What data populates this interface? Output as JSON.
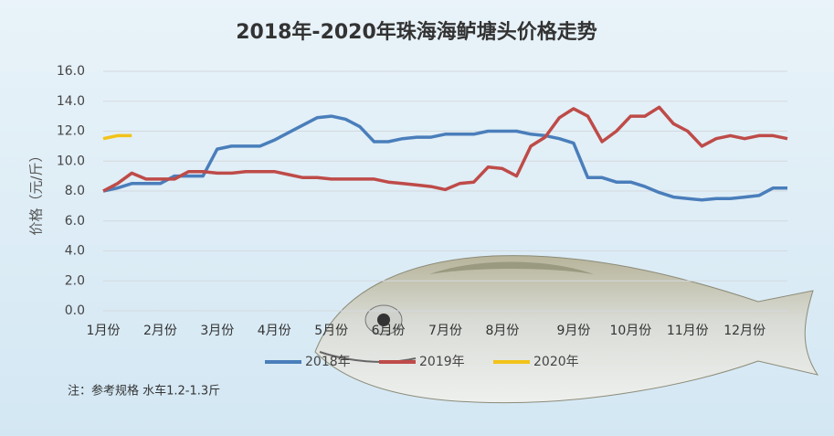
{
  "chart_data": {
    "type": "line",
    "title": "2018年-2020年珠海海鲈塘头价格走势",
    "y_label": "价格（元/斤）",
    "note": "注：参考规格 水车1.2-1.3斤",
    "categories": [
      "1月份",
      null,
      null,
      null,
      "2月份",
      null,
      null,
      null,
      "3月份",
      null,
      null,
      null,
      "4月份",
      null,
      null,
      null,
      "5月份",
      null,
      null,
      null,
      "6月份",
      null,
      null,
      null,
      "7月份",
      null,
      null,
      null,
      "8月份",
      null,
      null,
      null,
      null,
      "9月份",
      null,
      null,
      null,
      "10月份",
      null,
      null,
      null,
      "11月份",
      null,
      null,
      null,
      "12月份",
      null,
      null,
      null
    ],
    "series": [
      {
        "name": "2018年",
        "color": "#4a7ebb",
        "values": [
          8.0,
          8.2,
          8.5,
          8.5,
          8.5,
          9.0,
          9.0,
          9.0,
          10.8,
          11.0,
          11.0,
          11.0,
          11.4,
          11.9,
          12.4,
          12.9,
          13.0,
          12.8,
          12.3,
          11.3,
          11.3,
          11.5,
          11.6,
          11.6,
          11.8,
          11.8,
          11.8,
          12.0,
          12.0,
          12.0,
          11.8,
          11.7,
          11.5,
          11.2,
          8.9,
          8.9,
          8.6,
          8.6,
          8.3,
          7.9,
          7.6,
          7.5,
          7.4,
          7.5,
          7.5,
          7.6,
          7.7,
          8.2,
          8.2
        ]
      },
      {
        "name": "2019年",
        "color": "#be4b48",
        "values": [
          8.0,
          8.5,
          9.2,
          8.8,
          8.8,
          8.8,
          9.3,
          9.3,
          9.2,
          9.2,
          9.3,
          9.3,
          9.3,
          9.1,
          8.9,
          8.9,
          8.8,
          8.8,
          8.8,
          8.8,
          8.6,
          8.5,
          8.4,
          8.3,
          8.1,
          8.5,
          8.6,
          9.6,
          9.5,
          9.0,
          11.0,
          11.6,
          12.9,
          13.5,
          13.0,
          11.3,
          12.0,
          13.0,
          13.0,
          13.6,
          12.5,
          12.0,
          11.0,
          11.5,
          11.7,
          11.5,
          11.7,
          11.7,
          11.5
        ]
      },
      {
        "name": "2020年",
        "color": "#f2c318",
        "values": [
          11.5,
          11.7,
          11.7,
          null,
          null,
          null,
          null,
          null,
          null,
          null,
          null,
          null,
          null,
          null,
          null,
          null,
          null,
          null,
          null,
          null,
          null,
          null,
          null,
          null,
          null,
          null,
          null,
          null,
          null,
          null,
          null,
          null,
          null,
          null,
          null,
          null,
          null,
          null,
          null,
          null,
          null,
          null,
          null,
          null,
          null,
          null,
          null,
          null,
          null
        ]
      }
    ],
    "ylim": [
      0,
      16
    ],
    "yticks": [
      {
        "value": 0,
        "label": "0.0"
      },
      {
        "value": 2,
        "label": "2.0"
      },
      {
        "value": 4,
        "label": "4.0"
      },
      {
        "value": 6,
        "label": "6.0"
      },
      {
        "value": 8,
        "label": "8.0"
      },
      {
        "value": 10,
        "label": "10.0"
      },
      {
        "value": 12,
        "label": "12.0"
      },
      {
        "value": 14,
        "label": "14.0"
      },
      {
        "value": 16,
        "label": "16.0"
      }
    ],
    "grid": true
  }
}
